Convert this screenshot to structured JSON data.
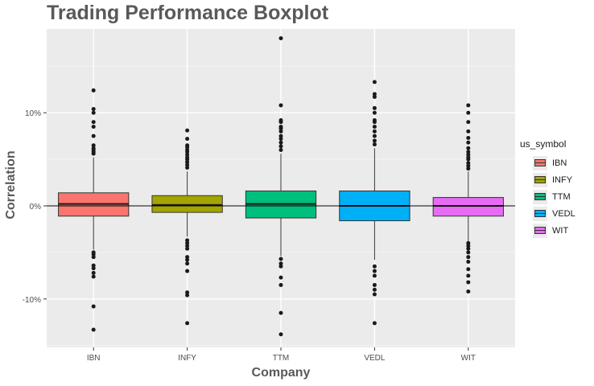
{
  "title": "Trading Performance Boxplot",
  "chart_data": {
    "type": "boxplot",
    "title": "Trading Performance Boxplot",
    "xlabel": "Company",
    "ylabel": "Correlation",
    "ylim": [
      -0.152,
      0.19
    ],
    "y_ticks": [
      -0.1,
      0.0,
      0.1
    ],
    "y_tick_labels": [
      "-10%",
      "0%",
      "10%"
    ],
    "hline_y": 0,
    "grid": true,
    "legend": {
      "title": "us_symbol",
      "position": "right"
    },
    "categories": [
      "IBN",
      "INFY",
      "TTM",
      "VEDL",
      "WIT"
    ],
    "series": [
      {
        "name": "IBN",
        "color": "#F8766D",
        "q1": -0.011,
        "median": 0.002,
        "q3": 0.014,
        "whisker_low": -0.047,
        "whisker_high": 0.052,
        "outliers": [
          0.124,
          0.104,
          0.1,
          0.09,
          0.085,
          0.075,
          0.065,
          0.062,
          0.06,
          0.058,
          0.056,
          -0.05,
          -0.052,
          -0.055,
          -0.064,
          -0.067,
          -0.072,
          -0.076,
          -0.108,
          -0.133
        ]
      },
      {
        "name": "INFY",
        "color": "#A3A500",
        "q1": -0.007,
        "median": 0.001,
        "q3": 0.011,
        "whisker_low": -0.033,
        "whisker_high": 0.037,
        "outliers": [
          0.081,
          0.072,
          0.065,
          0.063,
          0.06,
          0.058,
          0.055,
          0.052,
          0.05,
          0.047,
          0.044,
          0.041,
          -0.037,
          -0.04,
          -0.043,
          -0.046,
          -0.055,
          -0.058,
          -0.062,
          -0.07,
          -0.093,
          -0.096,
          -0.126
        ]
      },
      {
        "name": "TTM",
        "color": "#00BF7D",
        "q1": -0.013,
        "median": 0.002,
        "q3": 0.016,
        "whisker_low": -0.054,
        "whisker_high": 0.056,
        "outliers": [
          0.18,
          0.108,
          0.092,
          0.09,
          0.085,
          0.083,
          0.08,
          0.075,
          0.072,
          0.068,
          0.064,
          0.06,
          -0.057,
          -0.062,
          -0.065,
          -0.077,
          -0.085,
          -0.115,
          -0.138
        ]
      },
      {
        "name": "VEDL",
        "color": "#00B0F6",
        "q1": -0.016,
        "median": 0.0,
        "q3": 0.016,
        "whisker_low": -0.058,
        "whisker_high": 0.062,
        "outliers": [
          0.133,
          0.12,
          0.117,
          0.105,
          0.1,
          0.092,
          0.09,
          0.085,
          0.08,
          0.075,
          0.07,
          0.066,
          -0.065,
          -0.07,
          -0.075,
          -0.085,
          -0.09,
          -0.095,
          -0.126
        ]
      },
      {
        "name": "WIT",
        "color": "#E76BF3",
        "q1": -0.011,
        "median": 0.0,
        "q3": 0.009,
        "whisker_low": -0.038,
        "whisker_high": 0.037,
        "outliers": [
          0.108,
          0.1,
          0.09,
          0.08,
          0.073,
          0.068,
          0.062,
          0.058,
          0.055,
          0.052,
          0.05,
          0.046,
          0.043,
          0.04,
          -0.04,
          -0.043,
          -0.046,
          -0.05,
          -0.055,
          -0.06,
          -0.068,
          -0.075,
          -0.082,
          -0.092
        ]
      }
    ]
  }
}
